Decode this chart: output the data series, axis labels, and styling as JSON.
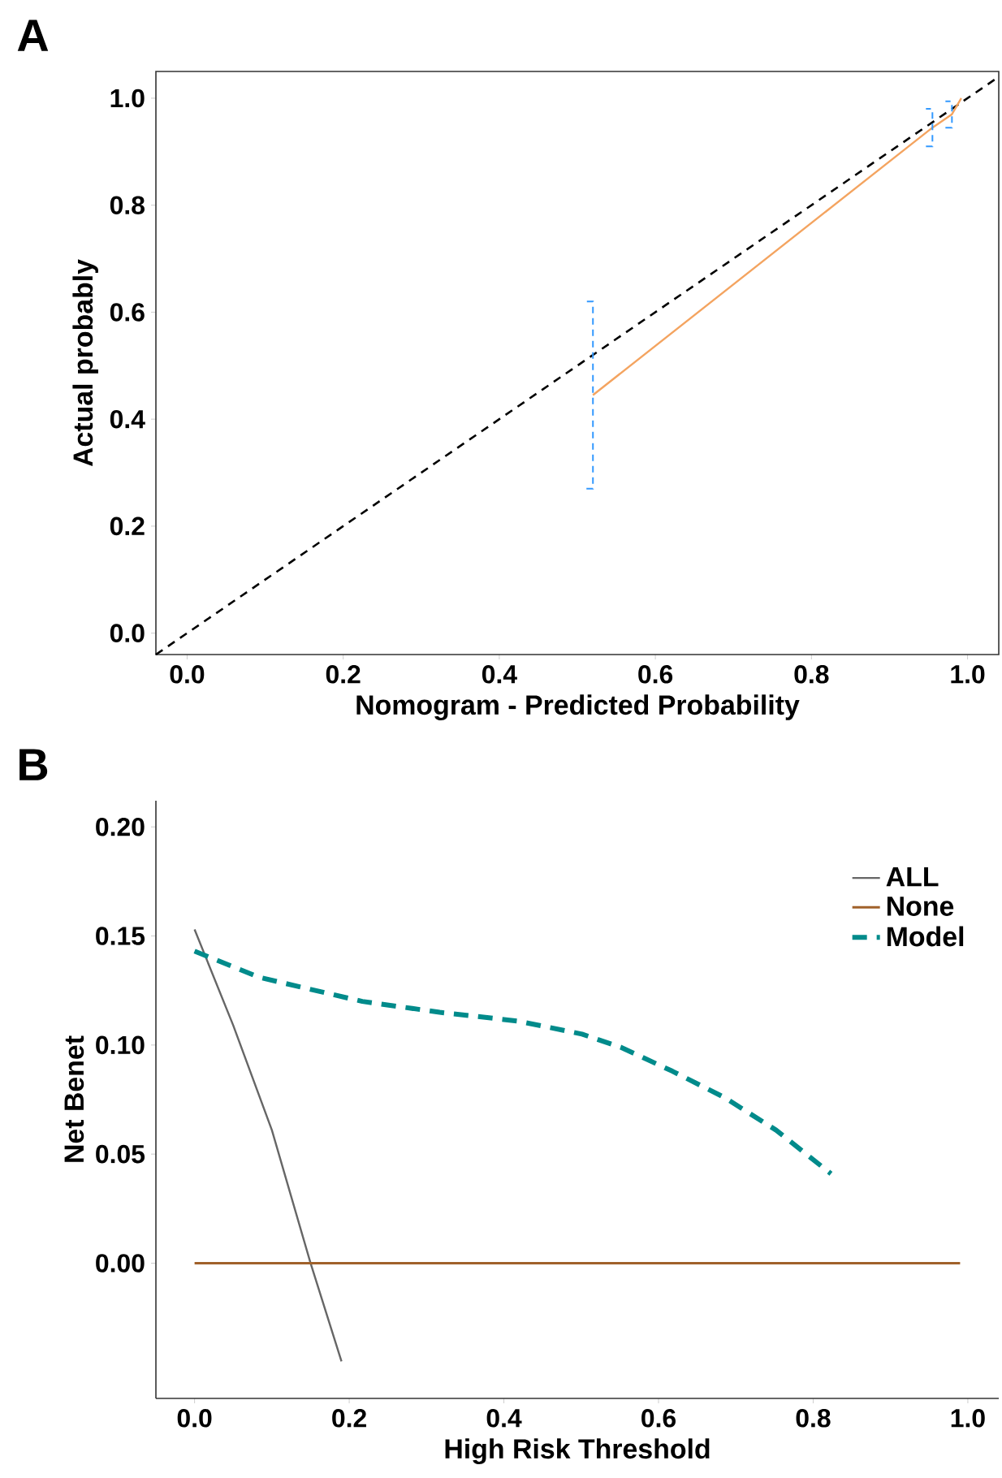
{
  "chart_data": [
    {
      "type": "line",
      "xlabel": "Nomogram - Predicted Probability",
      "ylabel": "Actual probably",
      "annotations": [
        "A"
      ],
      "xlim": [
        -0.04,
        1.04
      ],
      "ylim": [
        -0.04,
        1.05
      ],
      "xticks": [
        {
          "value": 0,
          "label": "0.0"
        },
        {
          "value": 0.2,
          "label": "0.2"
        },
        {
          "value": 0.4,
          "label": "0.4"
        },
        {
          "value": 0.6,
          "label": "0.6"
        },
        {
          "value": 0.8,
          "label": "0.8"
        },
        {
          "value": 1,
          "label": "1.0"
        }
      ],
      "yticks": [
        {
          "value": 0,
          "label": "0.0"
        },
        {
          "value": 0.2,
          "label": "0.2"
        },
        {
          "value": 0.4,
          "label": "0.4"
        },
        {
          "value": 0.6,
          "label": "0.6"
        },
        {
          "value": 0.8,
          "label": "0.8"
        },
        {
          "value": 1,
          "label": "1.0"
        }
      ],
      "series": [
        {
          "color": "#000000",
          "line_style": "dashed",
          "x": [
            -0.04,
            1.04
          ],
          "values": [
            -0.04,
            1.04
          ]
        },
        {
          "color": "#f4a460",
          "line_style": "solid",
          "x": [
            0.52,
            0.955,
            0.98,
            0.992
          ],
          "values": [
            0.445,
            0.945,
            0.97,
            1.0
          ],
          "errors": [
            [
              0.27,
              0.62
            ],
            [
              0.91,
              0.98
            ],
            [
              0.945,
              0.994
            ],
            null
          ]
        }
      ]
    },
    {
      "type": "line",
      "xlabel": "High Risk Threshold",
      "ylabel": "Net Benet",
      "annotations": [
        "B"
      ],
      "legend": "top right",
      "xlim": [
        -0.05,
        1.04
      ],
      "ylim": [
        -0.062,
        0.212
      ],
      "xticks": [
        {
          "value": 0,
          "label": "0.0"
        },
        {
          "value": 0.2,
          "label": "0.2"
        },
        {
          "value": 0.4,
          "label": "0.4"
        },
        {
          "value": 0.6,
          "label": "0.6"
        },
        {
          "value": 0.8,
          "label": "0.8"
        },
        {
          "value": 1,
          "label": "1.0"
        }
      ],
      "yticks": [
        {
          "value": 0,
          "label": "0.00"
        },
        {
          "value": 0.05,
          "label": "0.05"
        },
        {
          "value": 0.1,
          "label": "0.10"
        },
        {
          "value": 0.15,
          "label": "0.15"
        },
        {
          "value": 0.2,
          "label": "0.20"
        }
      ],
      "series": [
        {
          "name": "ALL",
          "color": "#666666",
          "line_style": "solid",
          "x": [
            0,
            0.05,
            0.1,
            0.15,
            0.19
          ],
          "values": [
            0.153,
            0.109,
            0.061,
            0.0,
            -0.045
          ]
        },
        {
          "name": "None",
          "color": "#a0612a",
          "line_style": "solid",
          "x": [
            0,
            0.99
          ],
          "values": [
            0,
            0
          ]
        },
        {
          "name": "Model",
          "color": "#008b8b",
          "line_style": "dashed",
          "x": [
            0,
            0.084,
            0.217,
            0.317,
            0.418,
            0.501,
            0.551,
            0.618,
            0.685,
            0.752,
            0.823
          ],
          "values": [
            0.143,
            0.131,
            0.12,
            0.115,
            0.111,
            0.105,
            0.099,
            0.088,
            0.076,
            0.061,
            0.041
          ]
        }
      ]
    }
  ]
}
